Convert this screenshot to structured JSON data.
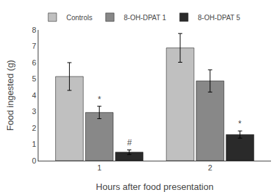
{
  "chart_data": {
    "type": "bar",
    "xlabel": "Hours after food presentation",
    "ylabel": "Food ingested (g)",
    "categories": [
      "1",
      "2"
    ],
    "series": [
      {
        "name": "Controls",
        "color": "#c0c0c0",
        "values": [
          5.15,
          6.9
        ],
        "errors": [
          0.85,
          0.88
        ],
        "annotations": [
          null,
          null
        ]
      },
      {
        "name": "8-OH-DPAT 1",
        "color": "#888888",
        "values": [
          2.95,
          4.88
        ],
        "errors": [
          0.38,
          0.68
        ],
        "annotations": [
          "*",
          null
        ]
      },
      {
        "name": "8-OH-DPAT 5",
        "color": "#2a2a2a",
        "values": [
          0.52,
          1.6
        ],
        "errors": [
          0.14,
          0.22
        ],
        "annotations": [
          "#",
          "*"
        ]
      }
    ],
    "ylim": [
      0,
      8
    ],
    "yticks": [
      0,
      1,
      2,
      3,
      4,
      5,
      6,
      7,
      8
    ],
    "grid": false,
    "legend": "upper left"
  }
}
